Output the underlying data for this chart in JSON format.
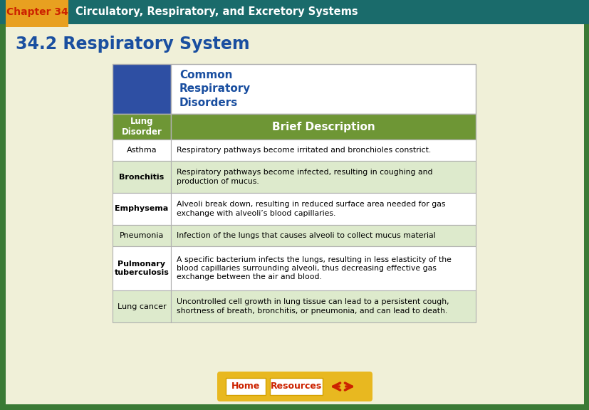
{
  "bg_outer": "#3a7a35",
  "bg_inner": "#f0f0d8",
  "header_bar_color": "#1a6b6b",
  "chapter_bg": "#e8a020",
  "chapter_text": "Chapter 34",
  "chapter_title_text": "Circulatory, Respiratory, and Excretory Systems",
  "section_title": "34.2 Respiratory System",
  "section_title_color": "#1a4fa0",
  "table_header_bg": "#6e9635",
  "table_blue_cell_bg": "#2e4fa3",
  "table_title_text": "Common\nRespiratory\nDisorders",
  "table_title_color": "#1a4fa0",
  "col1_header": "Lung\nDisorder",
  "col2_header": "Brief Description",
  "row_bg_even": "#ffffff",
  "row_bg_odd": "#ddeacc",
  "border_color": "#b0b0b0",
  "disorders": [
    {
      "name": "Asthma",
      "desc": "Respiratory pathways become irritated and bronchioles constrict.",
      "bold_name": false,
      "nlines": 1
    },
    {
      "name": "Bronchitis",
      "desc": "Respiratory pathways become infected, resulting in coughing and\nproduction of mucus.",
      "bold_name": true,
      "nlines": 2
    },
    {
      "name": "Emphysema",
      "desc": "Alveoli break down, resulting in reduced surface area needed for gas\nexchange with alveoli’s blood capillaries.",
      "bold_name": true,
      "nlines": 2
    },
    {
      "name": "Pneumonia",
      "desc": "Infection of the lungs that causes alveoli to collect mucus material",
      "bold_name": false,
      "nlines": 1
    },
    {
      "name": "Pulmonary\ntuberculosis",
      "desc": "A specific bacterium infects the lungs, resulting in less elasticity of the\nblood capillaries surrounding alveoli, thus decreasing effective gas\nexchange between the air and blood.",
      "bold_name": true,
      "nlines": 3
    },
    {
      "name": "Lung cancer",
      "desc": "Uncontrolled cell growth in lung tissue can lead to a persistent cough,\nshortness of breath, bronchitis, or pneumonia, and can lead to death.",
      "bold_name": false,
      "nlines": 2
    }
  ],
  "btn_bar_color": "#e8b820",
  "btn_text_color": "#cc2200",
  "home_text": "Home",
  "resources_text": "Resources"
}
